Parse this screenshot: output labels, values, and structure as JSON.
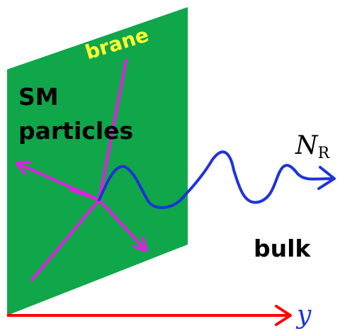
{
  "labels": {
    "brane": "brane",
    "sm_line1": "SM",
    "sm_line2": "particles",
    "nr_main": "N",
    "nr_sub": "R",
    "bulk": "bulk",
    "axis": "y"
  },
  "colors": {
    "brane_fill": "#10a64a",
    "brane_label": "#ffff33",
    "particle_lines": "#e31ee3",
    "neutrino_path": "#1f33d6",
    "axis": "#ff0000",
    "text": "#000000"
  }
}
